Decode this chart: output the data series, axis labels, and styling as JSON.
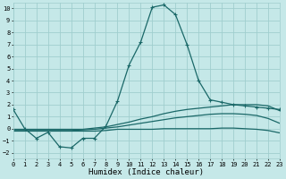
{
  "xlabel": "Humidex (Indice chaleur)",
  "xlim": [
    0,
    23
  ],
  "ylim": [
    -2.5,
    10.5
  ],
  "background_color": "#c5e8e8",
  "grid_color": "#a0cece",
  "line_color": "#1a6868",
  "x": [
    0,
    1,
    2,
    3,
    4,
    5,
    6,
    7,
    8,
    9,
    10,
    11,
    12,
    13,
    14,
    15,
    16,
    17,
    18,
    19,
    20,
    21,
    22,
    23
  ],
  "series": [
    {
      "y": [
        1.6,
        0.0,
        -0.8,
        -0.3,
        -1.5,
        -1.6,
        -0.8,
        -0.8,
        0.2,
        2.3,
        5.3,
        7.2,
        10.1,
        10.3,
        9.5,
        7.0,
        4.0,
        2.4,
        2.2,
        2.0,
        1.9,
        1.8,
        1.7,
        1.6
      ],
      "has_marker": true
    },
    {
      "y": [
        -0.05,
        -0.05,
        -0.05,
        -0.05,
        -0.05,
        -0.05,
        -0.05,
        0.05,
        0.15,
        0.35,
        0.55,
        0.8,
        1.0,
        1.25,
        1.45,
        1.6,
        1.7,
        1.8,
        1.9,
        2.0,
        2.0,
        2.0,
        1.9,
        1.5
      ],
      "has_marker": false
    },
    {
      "y": [
        -0.15,
        -0.15,
        -0.15,
        -0.15,
        -0.15,
        -0.15,
        -0.1,
        -0.05,
        0.05,
        0.15,
        0.3,
        0.45,
        0.6,
        0.75,
        0.9,
        1.0,
        1.1,
        1.2,
        1.25,
        1.25,
        1.2,
        1.1,
        0.85,
        0.45
      ],
      "has_marker": false
    },
    {
      "y": [
        -0.2,
        -0.2,
        -0.2,
        -0.2,
        -0.2,
        -0.2,
        -0.2,
        -0.2,
        -0.15,
        -0.05,
        -0.05,
        -0.05,
        -0.05,
        -0.0,
        0.0,
        0.0,
        0.0,
        0.0,
        0.05,
        0.05,
        0.0,
        -0.05,
        -0.15,
        -0.35
      ],
      "has_marker": false
    }
  ],
  "xticks": [
    0,
    1,
    2,
    3,
    4,
    5,
    6,
    7,
    8,
    9,
    10,
    11,
    12,
    13,
    14,
    15,
    16,
    17,
    18,
    19,
    20,
    21,
    22,
    23
  ],
  "yticks": [
    -2,
    -1,
    0,
    1,
    2,
    3,
    4,
    5,
    6,
    7,
    8,
    9,
    10
  ],
  "tick_fontsize": 5.0,
  "xlabel_fontsize": 6.5,
  "line_width": 0.9,
  "marker_size": 2.5
}
